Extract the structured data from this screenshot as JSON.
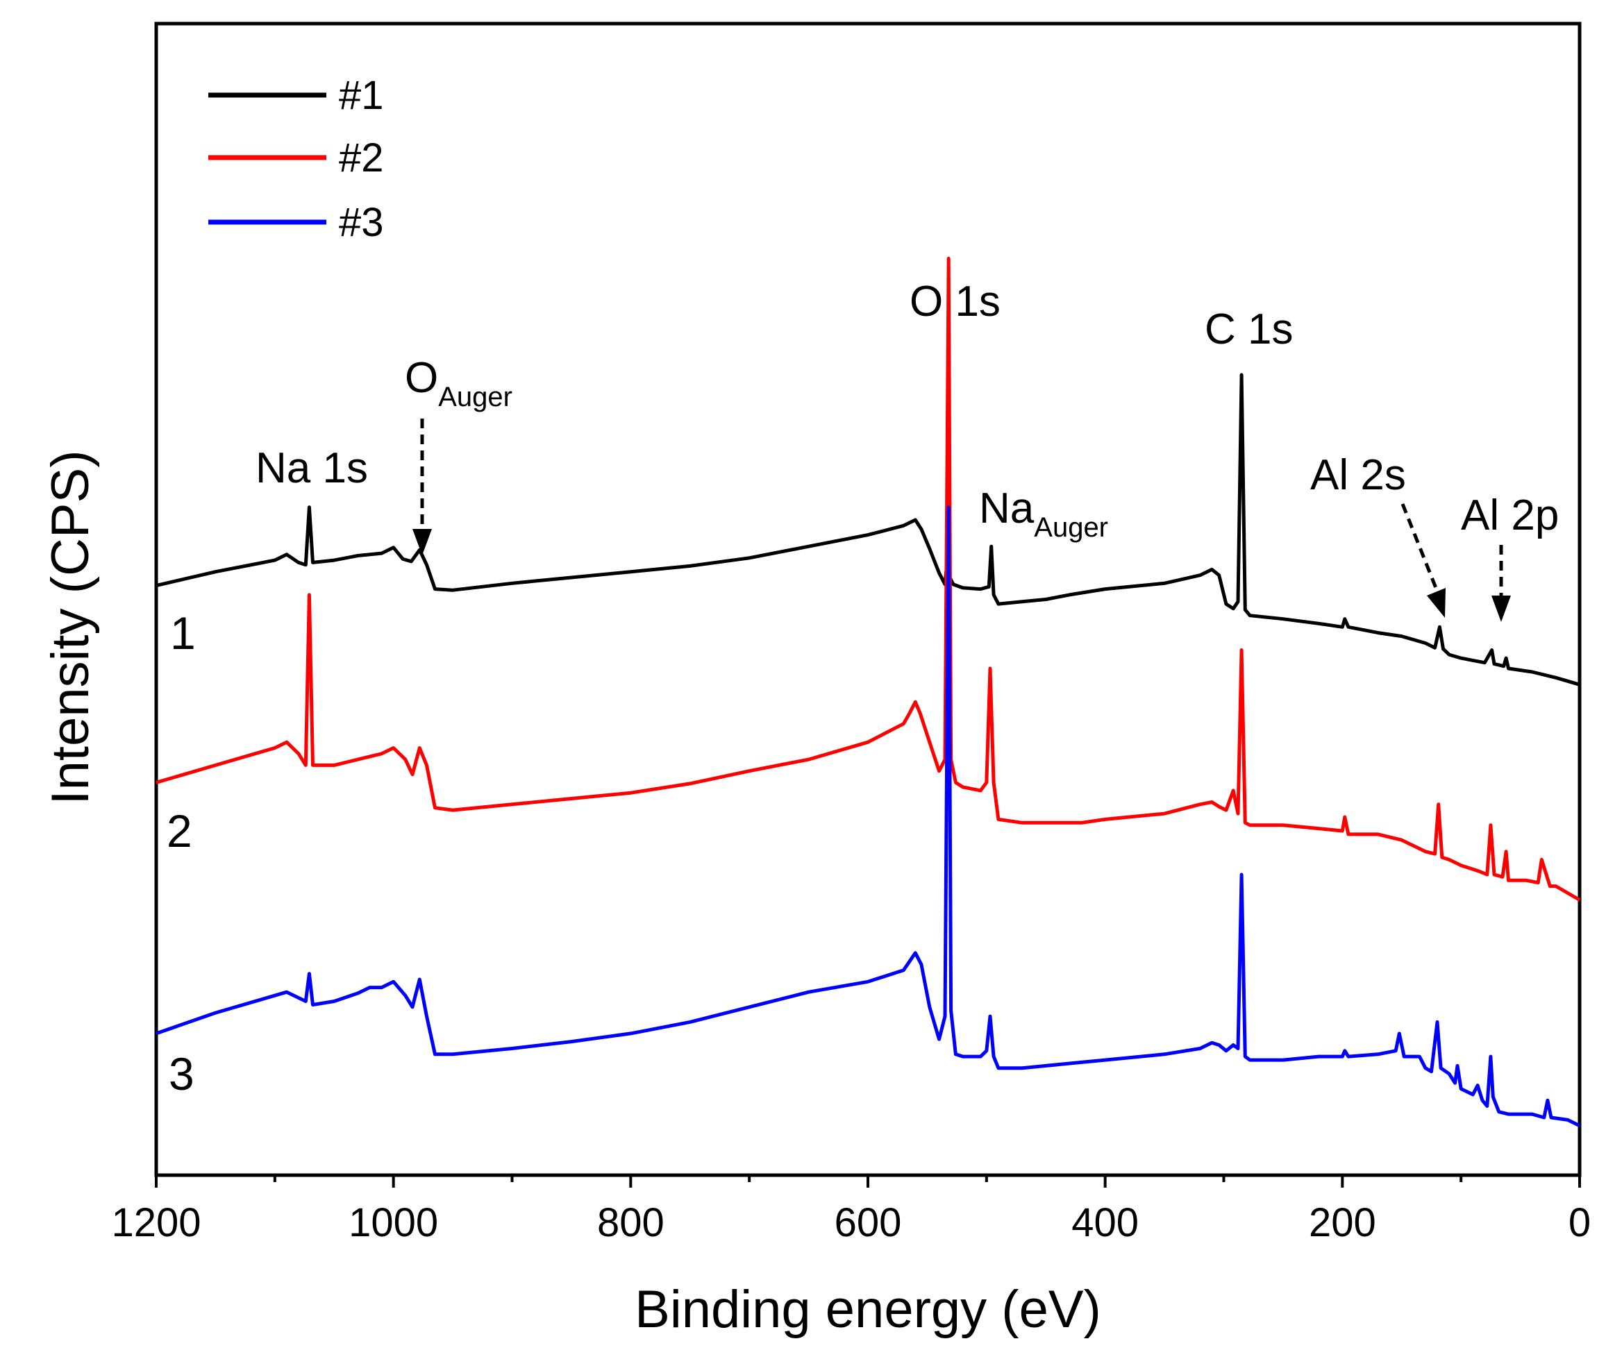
{
  "chart_data": {
    "type": "line",
    "title": "",
    "xlabel": "Binding energy (eV)",
    "ylabel": "Intensity (CPS)",
    "xlim": [
      1200,
      0
    ],
    "x_reversed": true,
    "ylim": [
      0,
      100
    ],
    "x_ticks": [
      1200,
      1000,
      800,
      600,
      400,
      200,
      0
    ],
    "x_minor_ticks": [
      1100,
      900,
      700,
      500,
      300,
      100
    ],
    "y_ticks_shown": false,
    "legend": {
      "position": "top-left",
      "entries": [
        {
          "label": "#1",
          "color": "#000000"
        },
        {
          "label": "#2",
          "color": "#ff0000"
        },
        {
          "label": "#3",
          "color": "#0000ff"
        }
      ]
    },
    "series": [
      {
        "name": "#1",
        "trace_label": "1",
        "color": "#000000",
        "points": [
          [
            1200,
            51.2
          ],
          [
            1150,
            52.4
          ],
          [
            1100,
            53.4
          ],
          [
            1090,
            53.9
          ],
          [
            1080,
            53.2
          ],
          [
            1074,
            53.0
          ],
          [
            1071,
            58.0
          ],
          [
            1068,
            53.2
          ],
          [
            1050,
            53.4
          ],
          [
            1030,
            53.8
          ],
          [
            1010,
            54.0
          ],
          [
            1000,
            54.5
          ],
          [
            992,
            53.5
          ],
          [
            985,
            53.3
          ],
          [
            978,
            54.3
          ],
          [
            972,
            53.0
          ],
          [
            965,
            50.9
          ],
          [
            950,
            50.8
          ],
          [
            900,
            51.4
          ],
          [
            850,
            51.9
          ],
          [
            800,
            52.4
          ],
          [
            750,
            52.9
          ],
          [
            700,
            53.6
          ],
          [
            650,
            54.6
          ],
          [
            600,
            55.6
          ],
          [
            570,
            56.4
          ],
          [
            560,
            56.9
          ],
          [
            555,
            56.1
          ],
          [
            548,
            54.4
          ],
          [
            540,
            52.3
          ],
          [
            535,
            51.3
          ],
          [
            533,
            53.5
          ],
          [
            531,
            51.9
          ],
          [
            528,
            51.3
          ],
          [
            520,
            51.0
          ],
          [
            505,
            50.9
          ],
          [
            498,
            51.1
          ],
          [
            496,
            54.6
          ],
          [
            494,
            50.4
          ],
          [
            490,
            49.6
          ],
          [
            470,
            49.8
          ],
          [
            450,
            50.0
          ],
          [
            430,
            50.4
          ],
          [
            400,
            50.9
          ],
          [
            350,
            51.4
          ],
          [
            320,
            52.1
          ],
          [
            310,
            52.6
          ],
          [
            304,
            52.1
          ],
          [
            298,
            49.6
          ],
          [
            292,
            49.2
          ],
          [
            288,
            49.8
          ],
          [
            285,
            69.5
          ],
          [
            282,
            49.1
          ],
          [
            278,
            48.6
          ],
          [
            250,
            48.3
          ],
          [
            220,
            47.9
          ],
          [
            200,
            47.6
          ],
          [
            198,
            48.3
          ],
          [
            195,
            47.6
          ],
          [
            170,
            47.1
          ],
          [
            150,
            46.8
          ],
          [
            130,
            46.2
          ],
          [
            122,
            45.8
          ],
          [
            118,
            47.6
          ],
          [
            115,
            45.7
          ],
          [
            110,
            45.2
          ],
          [
            100,
            44.9
          ],
          [
            90,
            44.7
          ],
          [
            80,
            44.5
          ],
          [
            74,
            45.6
          ],
          [
            72,
            44.4
          ],
          [
            64,
            44.2
          ],
          [
            62,
            44.9
          ],
          [
            60,
            44.0
          ],
          [
            40,
            43.7
          ],
          [
            20,
            43.2
          ],
          [
            0,
            42.6
          ]
        ]
      },
      {
        "name": "#2",
        "trace_label": "2",
        "color": "#ff0000",
        "points": [
          [
            1200,
            34.1
          ],
          [
            1150,
            35.6
          ],
          [
            1100,
            37.1
          ],
          [
            1090,
            37.6
          ],
          [
            1080,
            36.6
          ],
          [
            1074,
            35.6
          ],
          [
            1071,
            50.4
          ],
          [
            1068,
            35.6
          ],
          [
            1050,
            35.6
          ],
          [
            1030,
            36.1
          ],
          [
            1010,
            36.6
          ],
          [
            1000,
            37.1
          ],
          [
            990,
            36.1
          ],
          [
            984,
            34.8
          ],
          [
            978,
            37.1
          ],
          [
            972,
            35.6
          ],
          [
            965,
            31.9
          ],
          [
            950,
            31.7
          ],
          [
            900,
            32.2
          ],
          [
            850,
            32.7
          ],
          [
            800,
            33.2
          ],
          [
            750,
            34.0
          ],
          [
            700,
            35.1
          ],
          [
            650,
            36.1
          ],
          [
            600,
            37.6
          ],
          [
            570,
            39.2
          ],
          [
            565,
            40.1
          ],
          [
            560,
            41.1
          ],
          [
            556,
            40.1
          ],
          [
            548,
            37.6
          ],
          [
            540,
            35.1
          ],
          [
            535,
            36.1
          ],
          [
            532,
            79.6
          ],
          [
            530,
            36.1
          ],
          [
            526,
            34.1
          ],
          [
            520,
            33.7
          ],
          [
            505,
            33.4
          ],
          [
            500,
            34.1
          ],
          [
            497,
            44.0
          ],
          [
            494,
            34.1
          ],
          [
            490,
            30.9
          ],
          [
            470,
            30.6
          ],
          [
            450,
            30.6
          ],
          [
            420,
            30.6
          ],
          [
            400,
            30.9
          ],
          [
            350,
            31.4
          ],
          [
            320,
            32.2
          ],
          [
            310,
            32.4
          ],
          [
            304,
            32.0
          ],
          [
            298,
            31.7
          ],
          [
            292,
            33.4
          ],
          [
            288,
            31.4
          ],
          [
            285,
            45.6
          ],
          [
            282,
            30.6
          ],
          [
            278,
            30.4
          ],
          [
            250,
            30.4
          ],
          [
            220,
            30.1
          ],
          [
            200,
            29.9
          ],
          [
            198,
            31.1
          ],
          [
            195,
            29.6
          ],
          [
            170,
            29.6
          ],
          [
            150,
            29.1
          ],
          [
            130,
            28.1
          ],
          [
            122,
            27.9
          ],
          [
            119,
            32.2
          ],
          [
            116,
            27.6
          ],
          [
            110,
            27.4
          ],
          [
            100,
            26.9
          ],
          [
            85,
            26.4
          ],
          [
            78,
            26.1
          ],
          [
            75,
            30.4
          ],
          [
            72,
            26.1
          ],
          [
            65,
            25.9
          ],
          [
            62,
            28.1
          ],
          [
            60,
            25.6
          ],
          [
            45,
            25.6
          ],
          [
            35,
            25.4
          ],
          [
            32,
            27.4
          ],
          [
            25,
            25.1
          ],
          [
            20,
            25.1
          ],
          [
            0,
            23.9
          ]
        ]
      },
      {
        "name": "#3",
        "trace_label": "3",
        "color": "#0000ff",
        "points": [
          [
            1200,
            12.3
          ],
          [
            1150,
            14.1
          ],
          [
            1100,
            15.6
          ],
          [
            1090,
            15.9
          ],
          [
            1080,
            15.4
          ],
          [
            1074,
            15.1
          ],
          [
            1071,
            17.5
          ],
          [
            1068,
            14.8
          ],
          [
            1050,
            15.1
          ],
          [
            1030,
            15.8
          ],
          [
            1020,
            16.3
          ],
          [
            1010,
            16.3
          ],
          [
            1000,
            16.8
          ],
          [
            990,
            15.6
          ],
          [
            984,
            14.6
          ],
          [
            978,
            17.0
          ],
          [
            972,
            13.8
          ],
          [
            965,
            10.5
          ],
          [
            950,
            10.5
          ],
          [
            900,
            11.0
          ],
          [
            850,
            11.6
          ],
          [
            800,
            12.3
          ],
          [
            750,
            13.3
          ],
          [
            700,
            14.6
          ],
          [
            650,
            15.9
          ],
          [
            600,
            16.8
          ],
          [
            570,
            17.8
          ],
          [
            560,
            19.3
          ],
          [
            555,
            18.3
          ],
          [
            548,
            14.6
          ],
          [
            540,
            11.8
          ],
          [
            535,
            13.8
          ],
          [
            532,
            58.0
          ],
          [
            530,
            14.3
          ],
          [
            526,
            10.5
          ],
          [
            520,
            10.3
          ],
          [
            505,
            10.3
          ],
          [
            500,
            10.8
          ],
          [
            497,
            13.8
          ],
          [
            494,
            10.3
          ],
          [
            490,
            9.3
          ],
          [
            470,
            9.3
          ],
          [
            450,
            9.5
          ],
          [
            420,
            9.8
          ],
          [
            400,
            10.0
          ],
          [
            350,
            10.5
          ],
          [
            320,
            11.0
          ],
          [
            310,
            11.5
          ],
          [
            304,
            11.3
          ],
          [
            298,
            10.8
          ],
          [
            292,
            11.3
          ],
          [
            288,
            11.0
          ],
          [
            285,
            26.1
          ],
          [
            282,
            10.3
          ],
          [
            278,
            10.0
          ],
          [
            250,
            10.0
          ],
          [
            220,
            10.3
          ],
          [
            200,
            10.3
          ],
          [
            198,
            10.8
          ],
          [
            195,
            10.3
          ],
          [
            170,
            10.5
          ],
          [
            155,
            10.8
          ],
          [
            152,
            12.3
          ],
          [
            148,
            10.3
          ],
          [
            135,
            10.3
          ],
          [
            130,
            9.3
          ],
          [
            125,
            9.0
          ],
          [
            120,
            13.3
          ],
          [
            117,
            9.3
          ],
          [
            110,
            8.8
          ],
          [
            105,
            8.0
          ],
          [
            103,
            9.5
          ],
          [
            100,
            7.5
          ],
          [
            90,
            7.0
          ],
          [
            86,
            7.8
          ],
          [
            82,
            6.5
          ],
          [
            78,
            6.0
          ],
          [
            75,
            10.3
          ],
          [
            73,
            6.8
          ],
          [
            68,
            5.5
          ],
          [
            60,
            5.3
          ],
          [
            40,
            5.3
          ],
          [
            30,
            5.0
          ],
          [
            27,
            6.5
          ],
          [
            24,
            5.0
          ],
          [
            10,
            4.8
          ],
          [
            0,
            4.3
          ]
        ]
      }
    ],
    "annotations": [
      {
        "id": "na1s",
        "text": "Na 1s",
        "x": 1071,
        "arrow": false
      },
      {
        "id": "oauger",
        "main": "O",
        "sub": "Auger",
        "x": 978,
        "arrow": true
      },
      {
        "id": "o1s",
        "text": "O 1s",
        "x": 532,
        "arrow": false
      },
      {
        "id": "naauger",
        "main": "Na",
        "sub": "Auger",
        "x": 497,
        "arrow": false
      },
      {
        "id": "c1s",
        "text": "C 1s",
        "x": 285,
        "arrow": false
      },
      {
        "id": "al2s",
        "text": "Al 2s",
        "x": 118,
        "arrow": true
      },
      {
        "id": "al2p",
        "text": "Al 2p",
        "x": 74,
        "arrow": true
      }
    ]
  }
}
